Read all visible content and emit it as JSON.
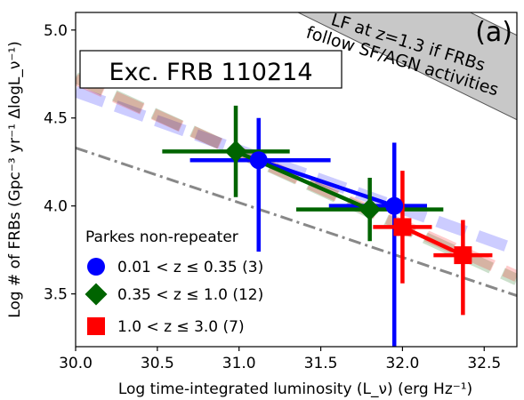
{
  "chart_data": {
    "type": "scatter",
    "panel_label": "(a)",
    "subtitle": "Exc. FRB 110214",
    "xlabel": "Log time-integrated luminosity (L_ν) (erg Hz⁻¹)",
    "ylabel": "Log # of FRBs (Gpc⁻³ yr⁻¹ ΔlogL_ν⁻¹)",
    "xlim": [
      30.0,
      32.7
    ],
    "ylim": [
      3.2,
      5.1
    ],
    "x_ticks": [
      30.0,
      30.5,
      31.0,
      31.5,
      32.0,
      32.5
    ],
    "x_tick_labels": [
      "30.0",
      "30.5",
      "31.0",
      "31.5",
      "32.0",
      "32.5"
    ],
    "y_ticks": [
      3.5,
      4.0,
      4.5,
      5.0
    ],
    "y_tick_labels": [
      "3.5",
      "4.0",
      "4.5",
      "5.0"
    ],
    "band_annotation": {
      "line1": "LF at z=1.3 if FRBs",
      "line2": "follow SF/AGN activities",
      "lower_edge": [
        [
          30.0,
          5.72
        ],
        [
          32.7,
          4.49
        ]
      ],
      "upper_edge": [
        [
          30.0,
          6.2
        ],
        [
          32.7,
          4.97
        ]
      ],
      "color": "#c8c8c8"
    },
    "legend": {
      "title": "Parkes non-repeater",
      "location": "lower-left",
      "entries": [
        {
          "marker": "circle",
          "label": "0.01 < z ≤ 0.35 (3)"
        },
        {
          "marker": "diamond",
          "label": "0.35 < z ≤ 1.0 (12)"
        },
        {
          "marker": "square",
          "label": "1.0 < z ≤ 3.0 (7)"
        }
      ]
    },
    "series": [
      {
        "marker": "circle",
        "color": "#0000ff",
        "points": [
          {
            "x": 31.12,
            "y": 4.26,
            "xerr": [
              0.42,
              0.44
            ],
            "yerr": [
              0.52,
              0.24
            ]
          },
          {
            "x": 31.95,
            "y": 4.0,
            "xerr": [
              0.4,
              0.2
            ],
            "yerr": [
              0.8,
              0.36
            ]
          }
        ],
        "fit": [
          [
            30.0,
            4.65
          ],
          [
            32.7,
            3.75
          ]
        ]
      },
      {
        "marker": "diamond",
        "color": "#006400",
        "points": [
          {
            "x": 30.98,
            "y": 4.31,
            "xerr": [
              0.45,
              0.33
            ],
            "yerr": [
              0.26,
              0.26
            ]
          },
          {
            "x": 31.8,
            "y": 3.98,
            "xerr": [
              0.45,
              0.45
            ],
            "yerr": [
              0.18,
              0.18
            ]
          }
        ],
        "fit": [
          [
            30.0,
            4.73
          ],
          [
            32.7,
            3.58
          ]
        ]
      },
      {
        "marker": "square",
        "color": "#ff0000",
        "points": [
          {
            "x": 32.0,
            "y": 3.88,
            "xerr": [
              0.18,
              0.18
            ],
            "yerr": [
              0.32,
              0.32
            ]
          },
          {
            "x": 32.37,
            "y": 3.72,
            "xerr": [
              0.18,
              0.18
            ],
            "yerr": [
              0.34,
              0.2
            ]
          }
        ],
        "fit": [
          [
            30.0,
            4.72
          ],
          [
            32.7,
            3.6
          ]
        ]
      }
    ],
    "reference_line": {
      "style": "dash-dot",
      "color": "#888888",
      "points": [
        [
          30.0,
          4.33
        ],
        [
          32.7,
          3.49
        ]
      ]
    }
  }
}
